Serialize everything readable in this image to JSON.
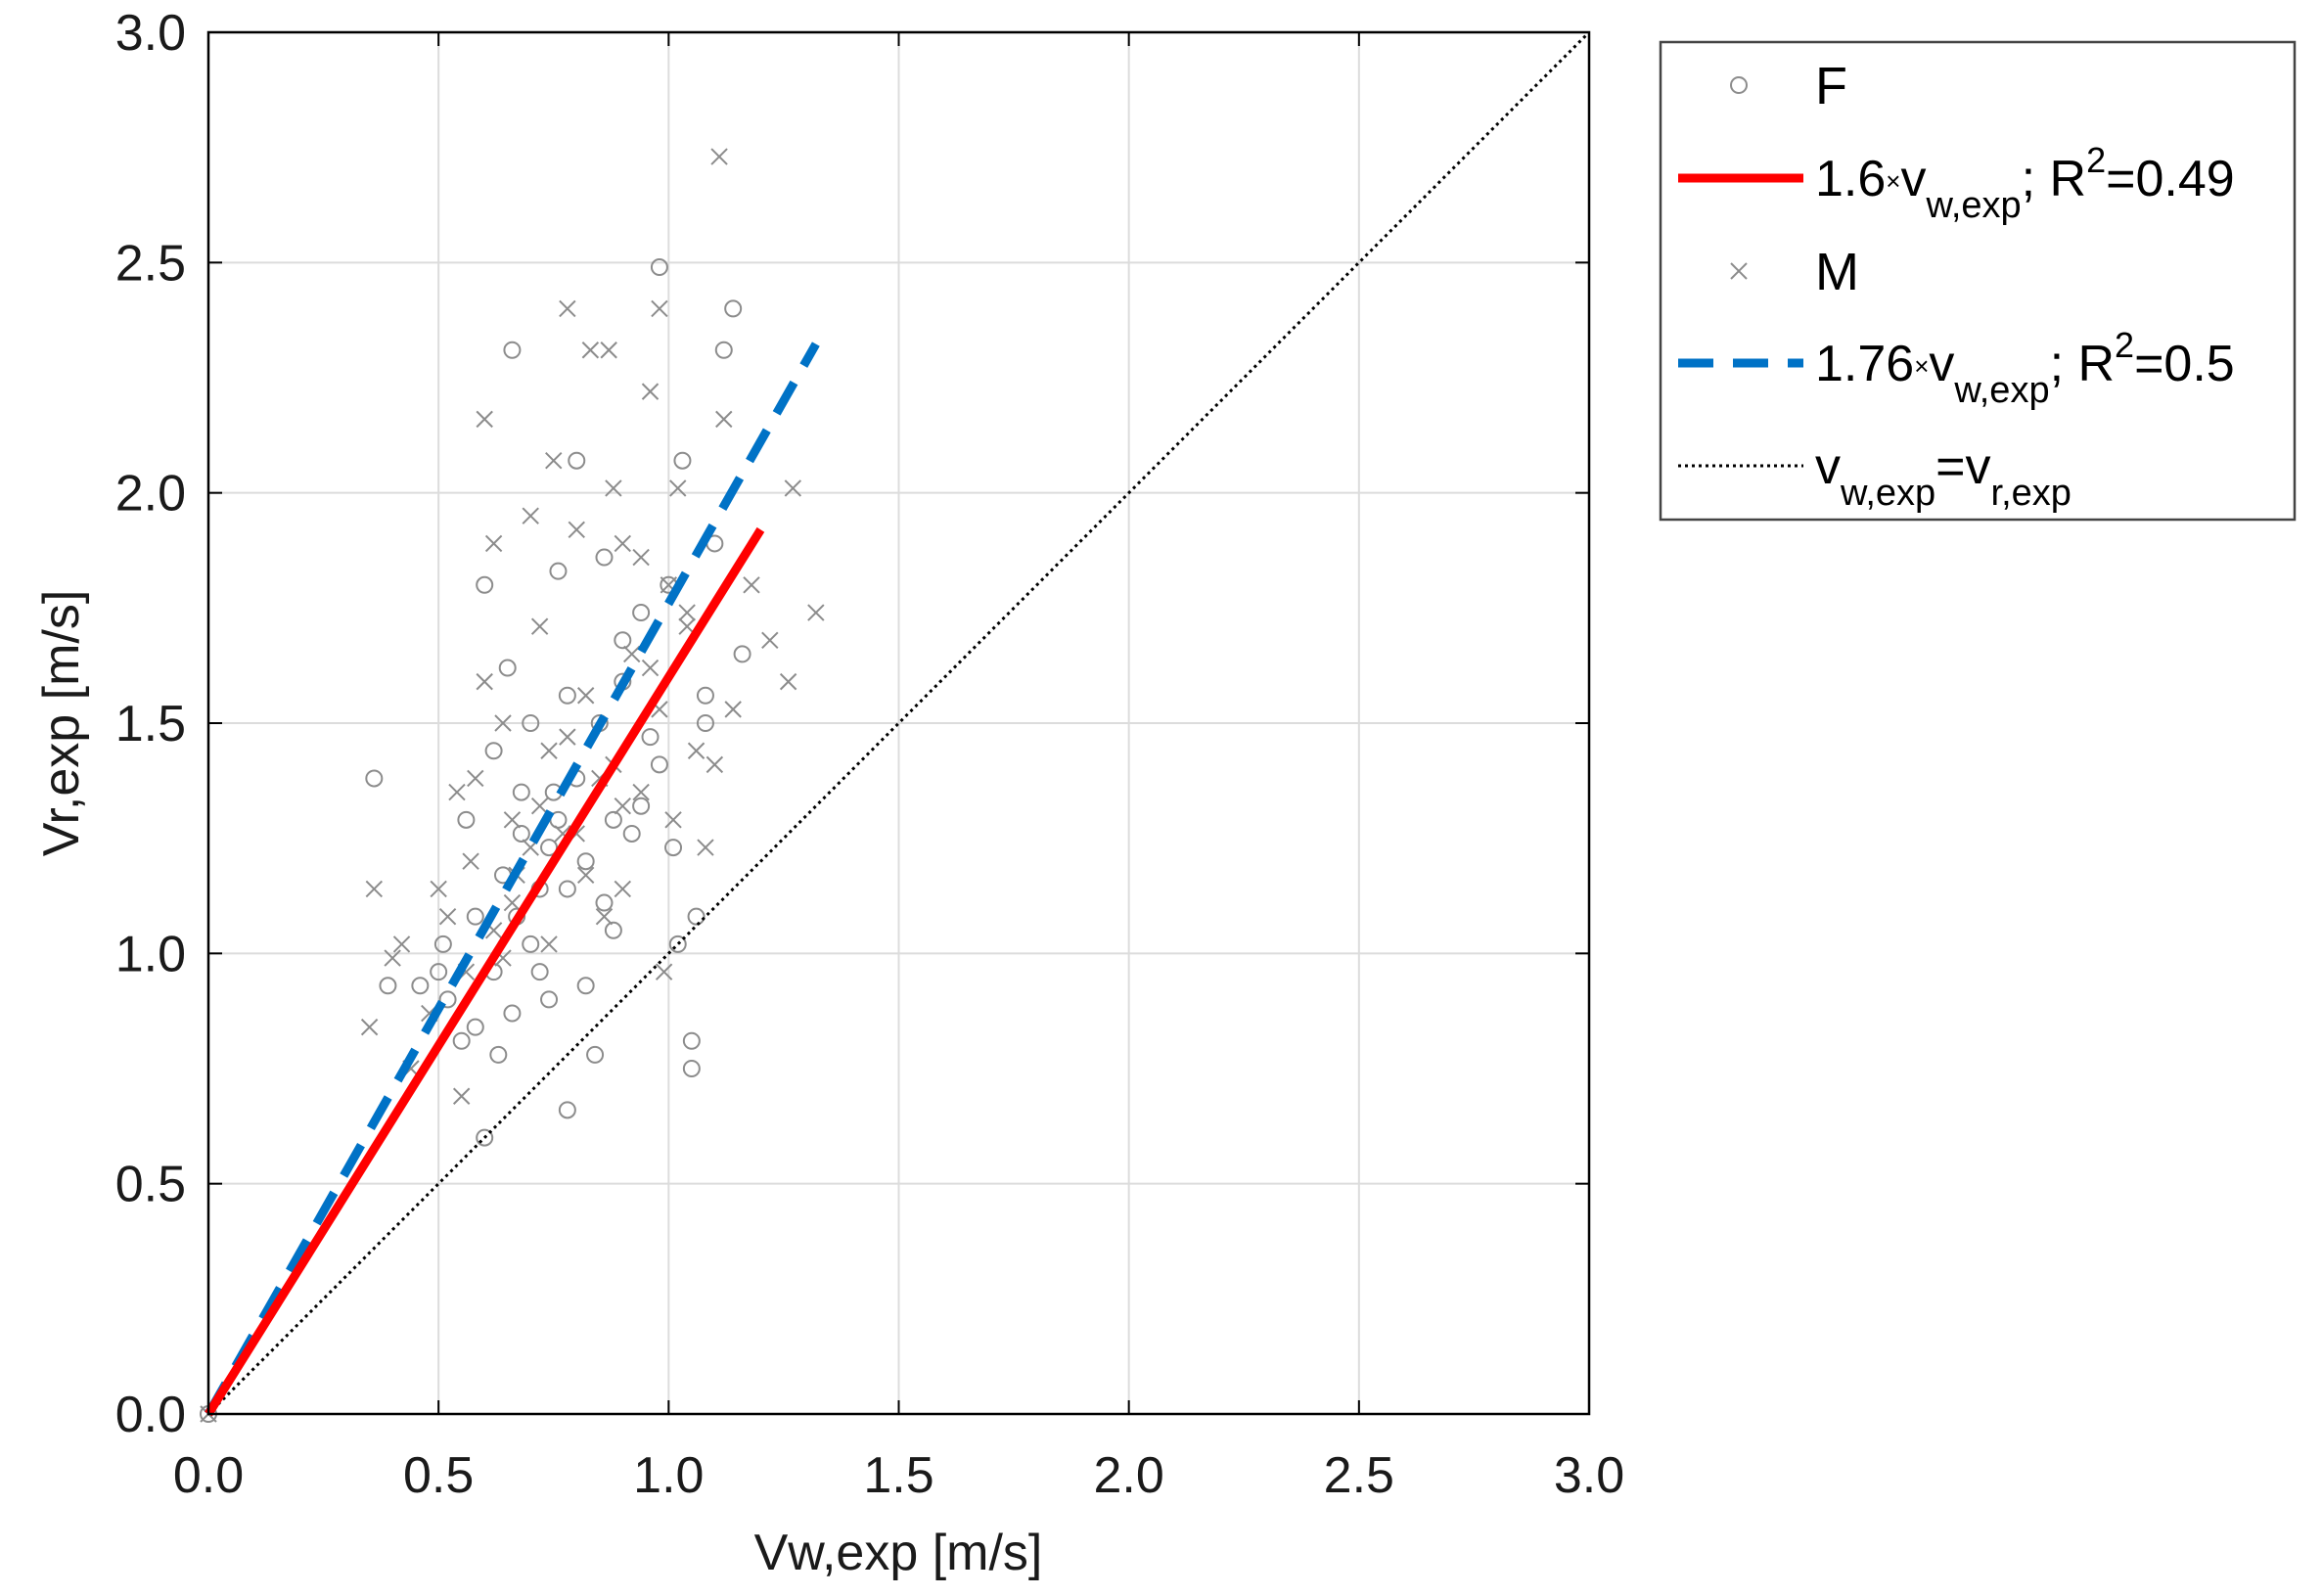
{
  "colors": {
    "female_marker": "#8c8c8c",
    "male_marker": "#8c8c8c",
    "fit_female": "#ff0000",
    "fit_male": "#0072c6",
    "identity": "#000000",
    "grid": "#dcdcdc",
    "axis": "#000000"
  },
  "chart_data": {
    "type": "scatter",
    "title": "",
    "xlabel": "Vw,exp [m/s]",
    "ylabel": "Vr,exp [m/s]",
    "xlim": [
      0,
      3
    ],
    "ylim": [
      0,
      3
    ],
    "xticks": [
      "0.0",
      "0.5",
      "1.0",
      "1.5",
      "2.0",
      "2.5",
      "3.0"
    ],
    "yticks": [
      "0.0",
      "0.5",
      "1.0",
      "1.5",
      "2.0",
      "2.5",
      "3.0"
    ],
    "grid": true,
    "legend_position": "outside-top-right",
    "legend": [
      {
        "key": "F",
        "text": "F"
      },
      {
        "key": "fitF",
        "text": "1.6×vw,exp; R2=0.49"
      },
      {
        "key": "M",
        "text": "M"
      },
      {
        "key": "fitM",
        "text": "1.76×vw,exp; R2=0.5"
      },
      {
        "key": "identity",
        "text": "vw,exp=vr,exp"
      }
    ],
    "series": [
      {
        "name": "F",
        "marker": "circle",
        "points": [
          [
            0.0,
            0.0
          ],
          [
            0.36,
            1.38
          ],
          [
            0.39,
            0.93
          ],
          [
            0.46,
            0.93
          ],
          [
            0.51,
            1.02
          ],
          [
            0.5,
            0.96
          ],
          [
            0.52,
            0.9
          ],
          [
            0.55,
            0.81
          ],
          [
            0.58,
            0.84
          ],
          [
            0.6,
            0.6
          ],
          [
            0.6,
            1.8
          ],
          [
            0.62,
            0.96
          ],
          [
            0.63,
            0.78
          ],
          [
            0.65,
            1.62
          ],
          [
            0.66,
            2.31
          ],
          [
            0.67,
            1.08
          ],
          [
            0.68,
            1.26
          ],
          [
            0.7,
            1.5
          ],
          [
            0.72,
            1.14
          ],
          [
            0.74,
            0.9
          ],
          [
            0.75,
            1.35
          ],
          [
            0.76,
            1.83
          ],
          [
            0.78,
            0.66
          ],
          [
            0.78,
            1.56
          ],
          [
            0.8,
            2.07
          ],
          [
            0.82,
            1.2
          ],
          [
            0.84,
            0.78
          ],
          [
            0.85,
            1.5
          ],
          [
            0.86,
            1.86
          ],
          [
            0.88,
            1.05
          ],
          [
            0.9,
            1.68
          ],
          [
            0.92,
            1.26
          ],
          [
            0.94,
            1.74
          ],
          [
            0.96,
            1.47
          ],
          [
            0.98,
            2.49
          ],
          [
            1.0,
            1.8
          ],
          [
            1.01,
            1.23
          ],
          [
            1.02,
            1.02
          ],
          [
            1.03,
            2.07
          ],
          [
            1.05,
            0.81
          ],
          [
            1.05,
            0.75
          ],
          [
            1.06,
            1.08
          ],
          [
            1.08,
            1.5
          ],
          [
            1.1,
            1.89
          ],
          [
            1.12,
            2.31
          ],
          [
            1.14,
            2.4
          ],
          [
            1.16,
            1.65
          ],
          [
            1.08,
            1.56
          ],
          [
            0.56,
            1.29
          ],
          [
            0.62,
            1.44
          ],
          [
            0.68,
            1.35
          ],
          [
            0.72,
            0.96
          ],
          [
            0.74,
            1.23
          ],
          [
            0.8,
            1.38
          ],
          [
            0.86,
            1.11
          ],
          [
            0.9,
            1.59
          ],
          [
            0.94,
            1.32
          ],
          [
            0.98,
            1.41
          ],
          [
            0.58,
            1.08
          ],
          [
            0.64,
            1.17
          ],
          [
            0.7,
            1.02
          ],
          [
            0.76,
            1.29
          ],
          [
            0.82,
            0.93
          ],
          [
            0.88,
            1.29
          ],
          [
            0.66,
            0.87
          ],
          [
            0.78,
            1.14
          ]
        ]
      },
      {
        "name": "M",
        "marker": "x",
        "points": [
          [
            0.0,
            0.0
          ],
          [
            0.35,
            0.84
          ],
          [
            0.36,
            1.14
          ],
          [
            0.4,
            0.99
          ],
          [
            0.42,
            1.02
          ],
          [
            0.44,
            0.75
          ],
          [
            0.5,
            1.14
          ],
          [
            0.52,
            1.08
          ],
          [
            0.54,
            1.35
          ],
          [
            0.55,
            0.69
          ],
          [
            0.57,
            1.2
          ],
          [
            0.6,
            1.59
          ],
          [
            0.6,
            2.16
          ],
          [
            0.62,
            1.89
          ],
          [
            0.64,
            1.5
          ],
          [
            0.66,
            1.29
          ],
          [
            0.67,
            1.17
          ],
          [
            0.7,
            1.95
          ],
          [
            0.72,
            1.71
          ],
          [
            0.74,
            1.44
          ],
          [
            0.75,
            2.07
          ],
          [
            0.77,
            1.26
          ],
          [
            0.78,
            2.4
          ],
          [
            0.8,
            1.92
          ],
          [
            0.82,
            1.56
          ],
          [
            0.83,
            2.31
          ],
          [
            0.85,
            1.38
          ],
          [
            0.87,
            2.31
          ],
          [
            0.88,
            2.01
          ],
          [
            0.9,
            1.32
          ],
          [
            0.9,
            1.89
          ],
          [
            0.92,
            1.65
          ],
          [
            0.94,
            1.86
          ],
          [
            0.96,
            2.22
          ],
          [
            0.98,
            2.4
          ],
          [
            0.99,
            0.96
          ],
          [
            1.0,
            1.8
          ],
          [
            1.01,
            1.29
          ],
          [
            1.02,
            2.01
          ],
          [
            1.04,
            1.74
          ],
          [
            1.06,
            1.44
          ],
          [
            1.08,
            1.23
          ],
          [
            1.1,
            1.41
          ],
          [
            1.11,
            2.73
          ],
          [
            1.12,
            2.16
          ],
          [
            1.14,
            1.53
          ],
          [
            1.18,
            1.8
          ],
          [
            1.22,
            1.68
          ],
          [
            1.26,
            1.59
          ],
          [
            1.27,
            2.01
          ],
          [
            1.32,
            1.74
          ],
          [
            0.58,
            1.38
          ],
          [
            0.62,
            1.05
          ],
          [
            0.66,
            1.11
          ],
          [
            0.7,
            1.23
          ],
          [
            0.74,
            1.02
          ],
          [
            0.78,
            1.47
          ],
          [
            0.82,
            1.17
          ],
          [
            0.86,
            1.08
          ],
          [
            0.9,
            1.14
          ],
          [
            0.94,
            1.35
          ],
          [
            0.98,
            1.53
          ],
          [
            0.48,
            0.87
          ],
          [
            0.56,
            0.96
          ],
          [
            0.64,
            0.99
          ],
          [
            0.72,
            1.32
          ],
          [
            0.8,
            1.26
          ],
          [
            0.88,
            1.41
          ],
          [
            0.96,
            1.62
          ],
          [
            1.04,
            1.71
          ]
        ]
      },
      {
        "name": "1.6×vw,exp",
        "type": "line",
        "style": "solid",
        "x": [
          0,
          1.2
        ],
        "y": [
          0,
          1.92
        ]
      },
      {
        "name": "1.76×vw,exp",
        "type": "line",
        "style": "dashed",
        "x": [
          0,
          1.32
        ],
        "y": [
          0,
          2.3232
        ]
      },
      {
        "name": "vw,exp=vr,exp",
        "type": "line",
        "style": "dotted",
        "x": [
          0,
          3
        ],
        "y": [
          0,
          3
        ]
      }
    ]
  }
}
